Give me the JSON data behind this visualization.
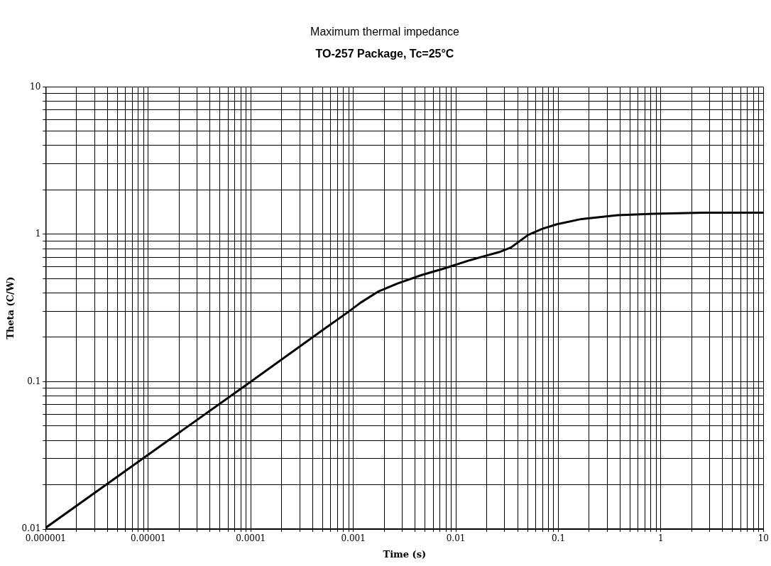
{
  "chart_data": {
    "type": "line",
    "title": "Maximum thermal impedance",
    "subtitle": "TO-257 Package, Tc=25°C",
    "xlabel": "Time (s)",
    "ylabel": "Theta (C/W)",
    "log": "xy",
    "grid": true,
    "legend": false,
    "marker": "none",
    "line_style": "solid",
    "xlim": [
      1e-06,
      10
    ],
    "ylim": [
      0.01,
      10
    ],
    "xticks": [
      {
        "value": 1e-06,
        "label": "0.000001"
      },
      {
        "value": 2e-06,
        "label": null
      },
      {
        "value": 3e-06,
        "label": null
      },
      {
        "value": 4e-06,
        "label": null
      },
      {
        "value": 5e-06,
        "label": null
      },
      {
        "value": 6e-06,
        "label": null
      },
      {
        "value": 7e-06,
        "label": null
      },
      {
        "value": 8e-06,
        "label": null
      },
      {
        "value": 9e-06,
        "label": null
      },
      {
        "value": 1e-05,
        "label": "0.00001"
      },
      {
        "value": 2e-05,
        "label": null
      },
      {
        "value": 3e-05,
        "label": null
      },
      {
        "value": 4e-05,
        "label": null
      },
      {
        "value": 5e-05,
        "label": null
      },
      {
        "value": 6e-05,
        "label": null
      },
      {
        "value": 7e-05,
        "label": null
      },
      {
        "value": 8e-05,
        "label": null
      },
      {
        "value": 9e-05,
        "label": null
      },
      {
        "value": 0.0001,
        "label": "0.0001"
      },
      {
        "value": 0.0002,
        "label": null
      },
      {
        "value": 0.0003,
        "label": null
      },
      {
        "value": 0.0004,
        "label": null
      },
      {
        "value": 0.0005,
        "label": null
      },
      {
        "value": 0.0006,
        "label": null
      },
      {
        "value": 0.0007,
        "label": null
      },
      {
        "value": 0.0008,
        "label": null
      },
      {
        "value": 0.0009,
        "label": null
      },
      {
        "value": 0.001,
        "label": "0.001"
      },
      {
        "value": 0.002,
        "label": null
      },
      {
        "value": 0.003,
        "label": null
      },
      {
        "value": 0.004,
        "label": null
      },
      {
        "value": 0.005,
        "label": null
      },
      {
        "value": 0.006,
        "label": null
      },
      {
        "value": 0.007,
        "label": null
      },
      {
        "value": 0.008,
        "label": null
      },
      {
        "value": 0.009,
        "label": null
      },
      {
        "value": 0.01,
        "label": "0.01"
      },
      {
        "value": 0.02,
        "label": null
      },
      {
        "value": 0.03,
        "label": null
      },
      {
        "value": 0.04,
        "label": null
      },
      {
        "value": 0.05,
        "label": null
      },
      {
        "value": 0.06,
        "label": null
      },
      {
        "value": 0.07,
        "label": null
      },
      {
        "value": 0.08,
        "label": null
      },
      {
        "value": 0.09,
        "label": null
      },
      {
        "value": 0.1,
        "label": "0.1"
      },
      {
        "value": 0.2,
        "label": null
      },
      {
        "value": 0.3,
        "label": null
      },
      {
        "value": 0.4,
        "label": null
      },
      {
        "value": 0.5,
        "label": null
      },
      {
        "value": 0.6,
        "label": null
      },
      {
        "value": 0.7,
        "label": null
      },
      {
        "value": 0.8,
        "label": null
      },
      {
        "value": 0.9,
        "label": null
      },
      {
        "value": 1,
        "label": "1"
      },
      {
        "value": 2,
        "label": null
      },
      {
        "value": 3,
        "label": null
      },
      {
        "value": 4,
        "label": null
      },
      {
        "value": 5,
        "label": null
      },
      {
        "value": 6,
        "label": null
      },
      {
        "value": 7,
        "label": null
      },
      {
        "value": 8,
        "label": null
      },
      {
        "value": 9,
        "label": null
      },
      {
        "value": 10,
        "label": "10"
      }
    ],
    "yticks": [
      {
        "value": 0.01,
        "label": "0.01"
      },
      {
        "value": 0.02,
        "label": null
      },
      {
        "value": 0.03,
        "label": null
      },
      {
        "value": 0.04,
        "label": null
      },
      {
        "value": 0.05,
        "label": null
      },
      {
        "value": 0.06,
        "label": null
      },
      {
        "value": 0.07,
        "label": null
      },
      {
        "value": 0.08,
        "label": null
      },
      {
        "value": 0.09,
        "label": null
      },
      {
        "value": 0.1,
        "label": "0.1"
      },
      {
        "value": 0.2,
        "label": null
      },
      {
        "value": 0.3,
        "label": null
      },
      {
        "value": 0.4,
        "label": null
      },
      {
        "value": 0.5,
        "label": null
      },
      {
        "value": 0.6,
        "label": null
      },
      {
        "value": 0.7,
        "label": null
      },
      {
        "value": 0.8,
        "label": null
      },
      {
        "value": 0.9,
        "label": null
      },
      {
        "value": 1,
        "label": "1"
      },
      {
        "value": 2,
        "label": null
      },
      {
        "value": 3,
        "label": null
      },
      {
        "value": 4,
        "label": null
      },
      {
        "value": 5,
        "label": null
      },
      {
        "value": 6,
        "label": null
      },
      {
        "value": 7,
        "label": null
      },
      {
        "value": 8,
        "label": null
      },
      {
        "value": 9,
        "label": null
      },
      {
        "value": 10,
        "label": "10"
      }
    ],
    "series": [
      {
        "color": "#000000",
        "x": [
          1e-06,
          1e-05,
          0.0001,
          0.00052,
          0.00089,
          0.00118,
          0.00173,
          0.00268,
          0.0046,
          0.0079,
          0.0137,
          0.019,
          0.0264,
          0.0346,
          0.0506,
          0.07,
          0.097,
          0.168,
          0.379,
          0.86,
          2.55,
          10
        ],
        "values": [
          0.0102,
          0.032,
          0.1,
          0.228,
          0.297,
          0.344,
          0.407,
          0.463,
          0.528,
          0.59,
          0.667,
          0.711,
          0.757,
          0.815,
          0.99,
          1.09,
          1.17,
          1.27,
          1.35,
          1.38,
          1.4,
          1.4
        ]
      }
    ]
  }
}
